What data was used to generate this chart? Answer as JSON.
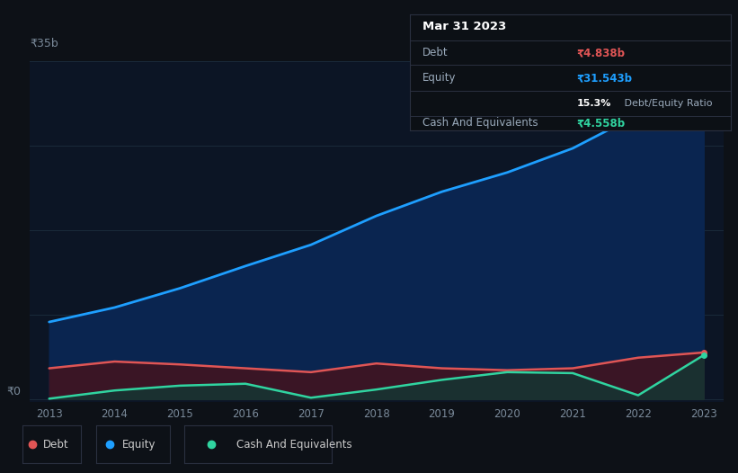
{
  "bg_color": "#0d1117",
  "plot_bg_color": "#0c1525",
  "grid_color": "#1a2a3a",
  "years": [
    2013,
    2014,
    2015,
    2016,
    2017,
    2018,
    2019,
    2020,
    2021,
    2022,
    2023
  ],
  "equity": [
    8.0,
    9.5,
    11.5,
    13.8,
    16.0,
    19.0,
    21.5,
    23.5,
    26.0,
    29.5,
    31.543
  ],
  "debt": [
    3.2,
    3.9,
    3.6,
    3.2,
    2.8,
    3.7,
    3.2,
    3.0,
    3.2,
    4.3,
    4.838
  ],
  "cash": [
    0.05,
    0.9,
    1.4,
    1.6,
    0.15,
    1.0,
    2.0,
    2.8,
    2.7,
    0.4,
    4.558
  ],
  "equity_color": "#1e9fff",
  "debt_color": "#e05555",
  "cash_color": "#30d4a0",
  "equity_fill": "#0a2550",
  "debt_fill": "#3a1525",
  "cash_fill": "#1a3030",
  "ylim_max": 35,
  "ylim_min": -0.3,
  "ylabel_text": "₹35b",
  "y0_text": "₹0",
  "tooltip_title": "Mar 31 2023",
  "tooltip_debt_label": "Debt",
  "tooltip_debt_value": "₹4.838b",
  "tooltip_equity_label": "Equity",
  "tooltip_equity_value": "₹31.543b",
  "tooltip_ratio_bold": "15.3%",
  "tooltip_ratio_rest": " Debt/Equity Ratio",
  "tooltip_cash_label": "Cash And Equivalents",
  "tooltip_cash_value": "₹4.558b",
  "tooltip_bg": "#0c1015",
  "tooltip_border": "#2a3040",
  "tooltip_line": "#2a3040"
}
